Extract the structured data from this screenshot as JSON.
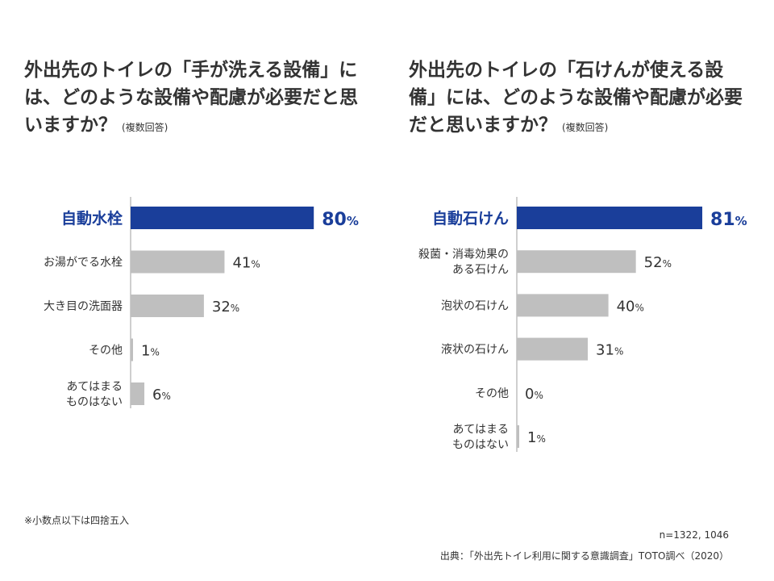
{
  "titles": {
    "left": "外出先のトイレの「手が洗える設備」には、どのような設備や配慮が必要だと思いますか？",
    "right": "外出先のトイレの「石けんが使える設備」には、どのような設備や配慮が必要だと思いますか？",
    "note": "(複数回答)"
  },
  "colors": {
    "highlight": "#1a3e9a",
    "bar": "#bfbfbf",
    "axis": "#bfbfbf",
    "text": "#333333"
  },
  "chart_data": [
    {
      "type": "bar",
      "orientation": "horizontal",
      "unit": "%",
      "xlim": [
        0,
        100
      ],
      "categories": [
        "自動水栓",
        "お湯がでる水栓",
        "大き目の洗面器",
        "その他",
        "あてはまる\nものはない"
      ],
      "values": [
        80,
        41,
        32,
        1,
        6
      ],
      "highlight_index": 0
    },
    {
      "type": "bar",
      "orientation": "horizontal",
      "unit": "%",
      "xlim": [
        0,
        100
      ],
      "categories": [
        "自動石けん",
        "殺菌・消毒効果の\nある石けん",
        "泡状の石けん",
        "液状の石けん",
        "その他",
        "あてはまる\nものはない"
      ],
      "values": [
        81,
        52,
        40,
        31,
        0,
        1
      ],
      "highlight_index": 0
    }
  ],
  "footnote": "※小数点以下は四捨五入",
  "sample_size": "n=1322, 1046",
  "source": "出典：「外出先トイレ利用に関する意識調査」TOTO調べ（2020）"
}
